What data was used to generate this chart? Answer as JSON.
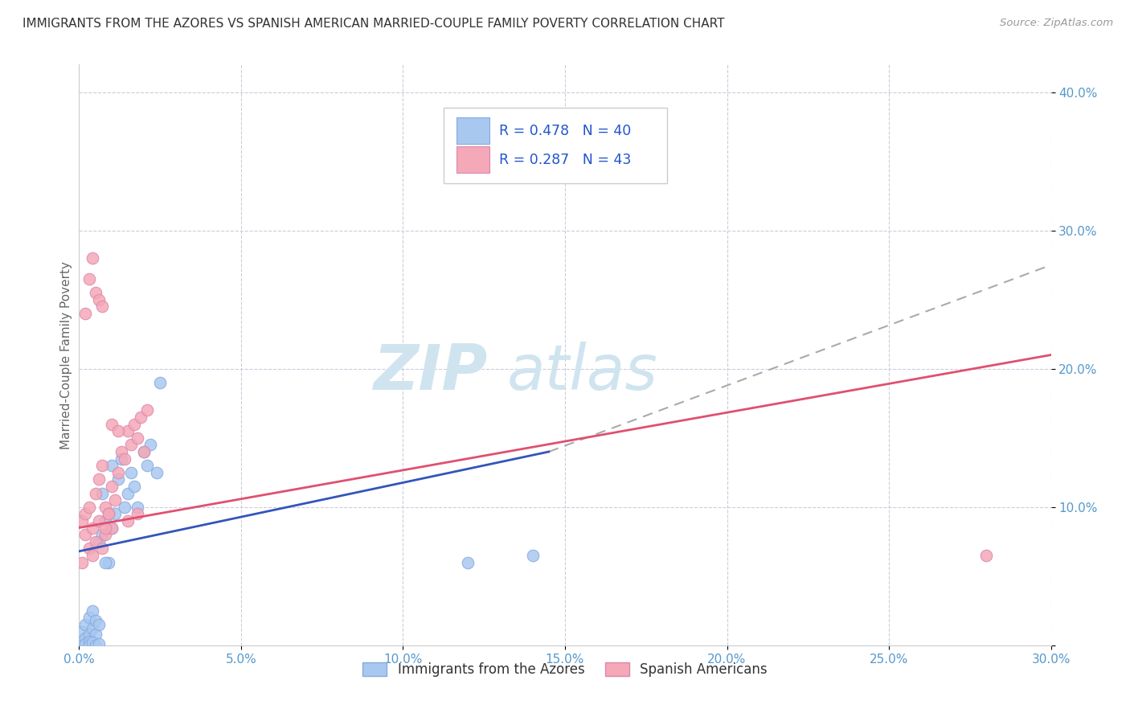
{
  "title": "IMMIGRANTS FROM THE AZORES VS SPANISH AMERICAN MARRIED-COUPLE FAMILY POVERTY CORRELATION CHART",
  "source": "Source: ZipAtlas.com",
  "ylabel": "Married-Couple Family Poverty",
  "xlim": [
    0.0,
    0.3
  ],
  "ylim": [
    0.0,
    0.42
  ],
  "xticks": [
    0.0,
    0.05,
    0.1,
    0.15,
    0.2,
    0.25,
    0.3
  ],
  "yticks": [
    0.0,
    0.1,
    0.2,
    0.3,
    0.4
  ],
  "legend_label1": "Immigrants from the Azores",
  "legend_label2": "Spanish Americans",
  "R1": 0.478,
  "N1": 40,
  "R2": 0.287,
  "N2": 43,
  "color1": "#a8c8f0",
  "color2": "#f4a8b8",
  "line_color1_solid": "#3355bb",
  "line_color2_solid": "#e05070",
  "line_color_dash": "#aaaaaa",
  "background_color": "#ffffff",
  "grid_color": "#ccccdd",
  "title_color": "#333333",
  "tick_color": "#5599cc",
  "watermark_color": "#d0e4f0",
  "azores_x": [
    0.001,
    0.002,
    0.002,
    0.003,
    0.003,
    0.004,
    0.004,
    0.005,
    0.005,
    0.006,
    0.006,
    0.007,
    0.007,
    0.008,
    0.009,
    0.01,
    0.01,
    0.011,
    0.012,
    0.013,
    0.014,
    0.015,
    0.016,
    0.017,
    0.018,
    0.02,
    0.021,
    0.022,
    0.024,
    0.025,
    0.001,
    0.002,
    0.003,
    0.003,
    0.004,
    0.005,
    0.006,
    0.008,
    0.12,
    0.14
  ],
  "azores_y": [
    0.01,
    0.015,
    0.005,
    0.02,
    0.008,
    0.012,
    0.025,
    0.018,
    0.008,
    0.015,
    0.075,
    0.08,
    0.11,
    0.09,
    0.06,
    0.13,
    0.085,
    0.095,
    0.12,
    0.135,
    0.1,
    0.11,
    0.125,
    0.115,
    0.1,
    0.14,
    0.13,
    0.145,
    0.125,
    0.19,
    0.0,
    0.001,
    0.003,
    0.0,
    0.002,
    0.0,
    0.001,
    0.06,
    0.06,
    0.065
  ],
  "spanish_x": [
    0.001,
    0.001,
    0.002,
    0.002,
    0.003,
    0.003,
    0.004,
    0.004,
    0.005,
    0.005,
    0.006,
    0.006,
    0.007,
    0.007,
    0.008,
    0.008,
    0.009,
    0.01,
    0.01,
    0.011,
    0.012,
    0.013,
    0.014,
    0.015,
    0.016,
    0.017,
    0.018,
    0.019,
    0.02,
    0.021,
    0.002,
    0.003,
    0.004,
    0.005,
    0.006,
    0.007,
    0.008,
    0.009,
    0.01,
    0.012,
    0.015,
    0.018,
    0.28
  ],
  "spanish_y": [
    0.06,
    0.09,
    0.08,
    0.095,
    0.07,
    0.1,
    0.065,
    0.085,
    0.075,
    0.11,
    0.09,
    0.12,
    0.07,
    0.13,
    0.08,
    0.1,
    0.095,
    0.115,
    0.085,
    0.105,
    0.125,
    0.14,
    0.135,
    0.155,
    0.145,
    0.16,
    0.15,
    0.165,
    0.14,
    0.17,
    0.24,
    0.265,
    0.28,
    0.255,
    0.25,
    0.245,
    0.085,
    0.095,
    0.16,
    0.155,
    0.09,
    0.095,
    0.065
  ],
  "blue_line_x": [
    0.0,
    0.145
  ],
  "blue_line_y": [
    0.068,
    0.14
  ],
  "dash_line_x": [
    0.145,
    0.3
  ],
  "dash_line_y": [
    0.14,
    0.275
  ],
  "pink_line_x": [
    0.0,
    0.3
  ],
  "pink_line_y": [
    0.085,
    0.21
  ]
}
